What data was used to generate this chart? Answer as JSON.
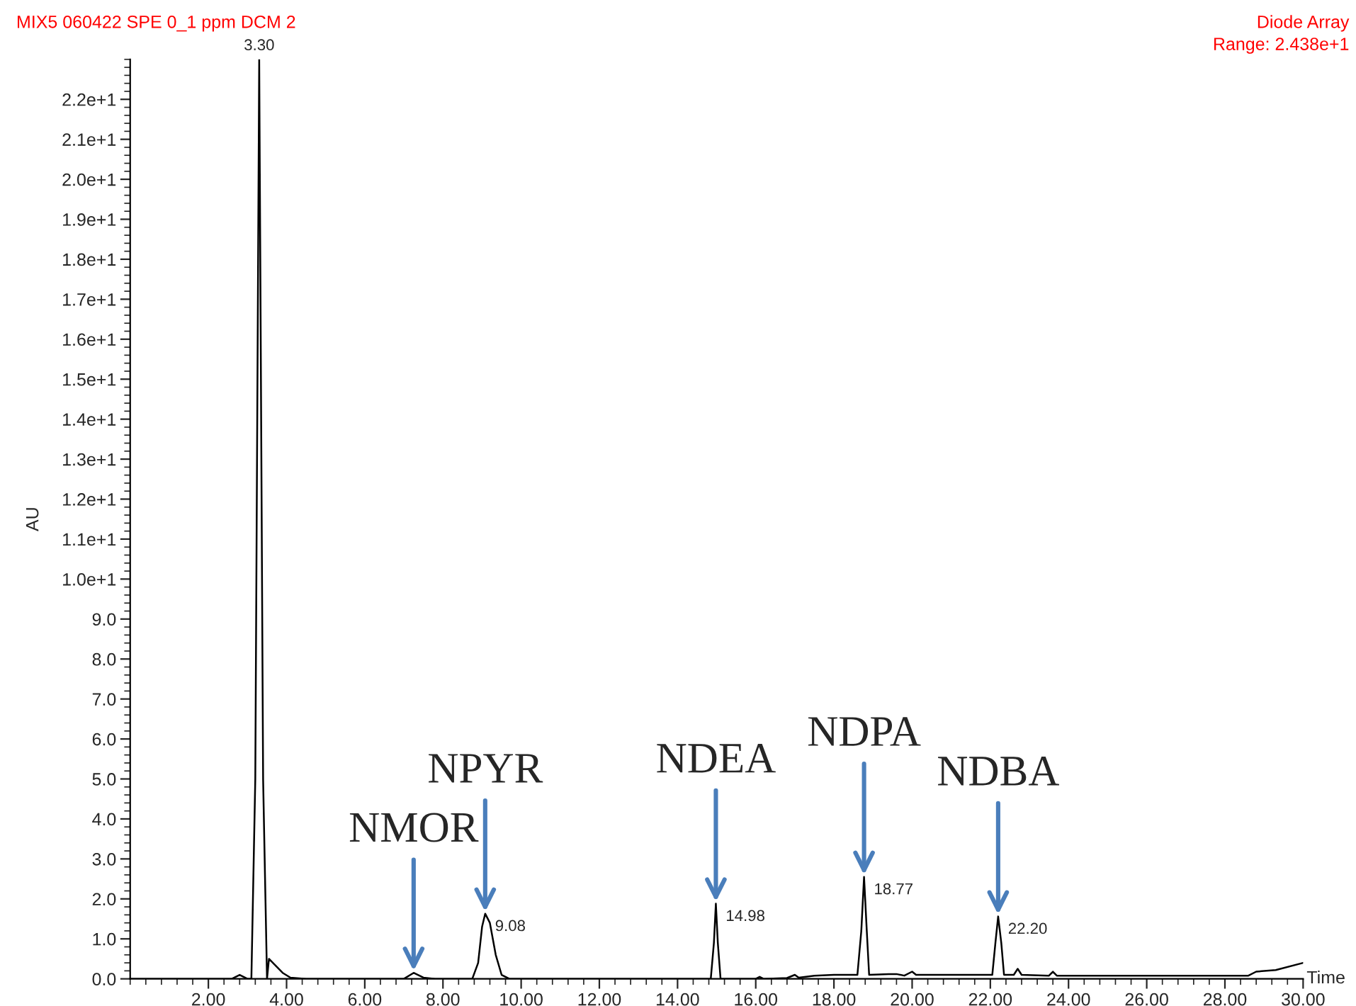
{
  "chart_data": {
    "type": "line",
    "title": "MIX5 060422 SPE 0_1 ppm DCM 2",
    "xlabel": "Time",
    "ylabel": "AU",
    "x": [
      0,
      2.6,
      2.8,
      3.0,
      3.1,
      3.2,
      3.3,
      3.4,
      3.5,
      3.55,
      3.7,
      3.9,
      4.1,
      4.5,
      7.0,
      7.25,
      7.5,
      7.8,
      8.75,
      8.9,
      9.0,
      9.08,
      9.2,
      9.35,
      9.5,
      9.7,
      14.85,
      14.93,
      14.98,
      15.03,
      15.1,
      16.0,
      16.1,
      16.2,
      16.8,
      17.0,
      17.1,
      17.5,
      18.0,
      18.6,
      18.7,
      18.77,
      18.84,
      18.9,
      19.4,
      19.6,
      19.8,
      20.0,
      20.1,
      21.0,
      22.05,
      22.13,
      22.2,
      22.28,
      22.35,
      22.6,
      22.7,
      22.8,
      23.5,
      23.6,
      23.7,
      25.0,
      28.6,
      28.8,
      29.3,
      30.0
    ],
    "series": [
      {
        "color": "#000000",
        "values": [
          0,
          0,
          0.1,
          0,
          0,
          5,
          23,
          5,
          0,
          0.5,
          0.35,
          0.15,
          0.03,
          0,
          0,
          0.15,
          0.03,
          0,
          0,
          0.4,
          1.3,
          1.63,
          1.4,
          0.6,
          0.1,
          0,
          0,
          0.9,
          1.88,
          0.9,
          0,
          0,
          0.05,
          0,
          0.02,
          0.1,
          0.03,
          0.08,
          0.1,
          0.1,
          1.2,
          2.55,
          1.2,
          0.1,
          0.12,
          0.12,
          0.08,
          0.18,
          0.1,
          0.1,
          0.1,
          0.9,
          1.56,
          0.9,
          0.1,
          0.1,
          0.25,
          0.1,
          0.08,
          0.18,
          0.08,
          0.08,
          0.08,
          0.18,
          0.22,
          0.4
        ]
      }
    ],
    "xlim": [
      0,
      30
    ],
    "ylim": [
      0,
      23
    ],
    "xticks": [
      {
        "value": 2,
        "label": "2.00"
      },
      {
        "value": 4,
        "label": "4.00"
      },
      {
        "value": 6,
        "label": "6.00"
      },
      {
        "value": 8,
        "label": "8.00"
      },
      {
        "value": 10,
        "label": "10.00"
      },
      {
        "value": 12,
        "label": "12.00"
      },
      {
        "value": 14,
        "label": "14.00"
      },
      {
        "value": 16,
        "label": "16.00"
      },
      {
        "value": 18,
        "label": "18.00"
      },
      {
        "value": 20,
        "label": "20.00"
      },
      {
        "value": 22,
        "label": "22.00"
      },
      {
        "value": 24,
        "label": "24.00"
      },
      {
        "value": 26,
        "label": "26.00"
      },
      {
        "value": 28,
        "label": "28.00"
      },
      {
        "value": 30,
        "label": "30.00"
      }
    ],
    "yticks": [
      {
        "value": 0,
        "label": "0.0"
      },
      {
        "value": 1,
        "label": "1.0"
      },
      {
        "value": 2,
        "label": "2.0"
      },
      {
        "value": 3,
        "label": "3.0"
      },
      {
        "value": 4,
        "label": "4.0"
      },
      {
        "value": 5,
        "label": "5.0"
      },
      {
        "value": 6,
        "label": "6.0"
      },
      {
        "value": 7,
        "label": "7.0"
      },
      {
        "value": 8,
        "label": "8.0"
      },
      {
        "value": 9,
        "label": "9.0"
      },
      {
        "value": 10,
        "label": "1.0e+1"
      },
      {
        "value": 11,
        "label": "1.1e+1"
      },
      {
        "value": 12,
        "label": "1.2e+1"
      },
      {
        "value": 13,
        "label": "1.3e+1"
      },
      {
        "value": 14,
        "label": "1.4e+1"
      },
      {
        "value": 15,
        "label": "1.5e+1"
      },
      {
        "value": 16,
        "label": "1.6e+1"
      },
      {
        "value": 17,
        "label": "1.7e+1"
      },
      {
        "value": 18,
        "label": "1.8e+1"
      },
      {
        "value": 19,
        "label": "1.9e+1"
      },
      {
        "value": 20,
        "label": "2.0e+1"
      },
      {
        "value": 21,
        "label": "2.1e+1"
      },
      {
        "value": 22,
        "label": "2.2e+1"
      }
    ],
    "grid": false,
    "legend": false,
    "marker": "none",
    "line_style": "solid",
    "annotations": [
      "Diode Array",
      "Range: 2.438e+1",
      {
        "text": "3.30",
        "x": 3.3,
        "y": 23
      },
      {
        "text": "9.08",
        "x": 9.08,
        "y": 1.63
      },
      {
        "text": "14.98",
        "x": 14.98,
        "y": 1.88
      },
      {
        "text": "18.77",
        "x": 18.77,
        "y": 2.55
      },
      {
        "text": "22.20",
        "x": 22.2,
        "y": 1.56
      },
      {
        "text": "NMOR",
        "x": 7.25,
        "y": 0.15
      },
      {
        "text": "NPYR",
        "x": 9.08,
        "y": 1.63
      },
      {
        "text": "NDEA",
        "x": 14.98,
        "y": 1.88
      },
      {
        "text": "NDPA",
        "x": 18.77,
        "y": 2.55
      },
      {
        "text": "NDBA",
        "x": 22.2,
        "y": 1.56
      }
    ]
  }
}
